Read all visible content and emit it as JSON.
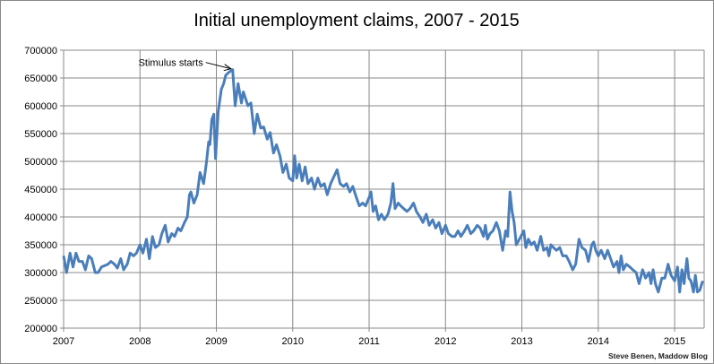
{
  "chart_data": {
    "type": "line",
    "title": "Initial unemployment claims, 2007 - 2015",
    "xlabel": "",
    "ylabel": "",
    "ylim": [
      200000,
      700000
    ],
    "xlim": [
      "2007-01-01",
      "2015-05-22"
    ],
    "grid": true,
    "legend": "none",
    "line_color": "#4A7EBB",
    "y_ticks": [
      "200000",
      "250000",
      "300000",
      "350000",
      "400000",
      "450000",
      "500000",
      "550000",
      "600000",
      "650000",
      "700000"
    ],
    "x_ticks": [
      "2007",
      "2008",
      "2009",
      "2010",
      "2011",
      "2012",
      "2013",
      "2014",
      "2015"
    ],
    "annotation": {
      "text": "Stimulus starts",
      "x": "2009-03-20",
      "y": 665000
    },
    "credit": "Steve Benen, Maddow Blog",
    "series": [
      {
        "x": [
          "2007-01-01",
          "2007-01-15",
          "2007-02-01",
          "2007-02-15",
          "2007-03-01",
          "2007-03-15",
          "2007-04-01",
          "2007-04-15",
          "2007-05-01",
          "2007-05-15",
          "2007-06-01",
          "2007-06-15",
          "2007-07-01",
          "2007-08-01",
          "2007-08-15",
          "2007-09-01",
          "2007-09-15",
          "2007-10-01",
          "2007-10-15",
          "2007-11-01",
          "2007-11-15",
          "2007-12-01",
          "2007-12-15",
          "2008-01-01",
          "2008-01-15",
          "2008-02-01",
          "2008-02-15",
          "2008-03-01",
          "2008-03-15",
          "2008-04-01",
          "2008-04-15",
          "2008-05-01",
          "2008-05-15",
          "2008-06-01",
          "2008-06-15",
          "2008-07-01",
          "2008-07-15",
          "2008-08-01",
          "2008-08-15",
          "2008-08-25",
          "2008-09-01",
          "2008-09-15",
          "2008-10-01",
          "2008-10-15",
          "2008-11-01",
          "2008-11-15",
          "2008-11-25",
          "2008-12-01",
          "2008-12-10",
          "2008-12-20",
          "2008-12-28",
          "2009-01-10",
          "2009-01-25",
          "2009-02-05",
          "2009-02-15",
          "2009-03-01",
          "2009-03-20",
          "2009-04-01",
          "2009-04-15",
          "2009-05-01",
          "2009-05-10",
          "2009-06-01",
          "2009-06-15",
          "2009-07-01",
          "2009-07-15",
          "2009-08-01",
          "2009-08-15",
          "2009-09-01",
          "2009-09-15",
          "2009-10-01",
          "2009-10-15",
          "2009-11-01",
          "2009-11-15",
          "2009-12-01",
          "2009-12-15",
          "2010-01-01",
          "2010-01-10",
          "2010-01-20",
          "2010-02-01",
          "2010-02-15",
          "2010-03-01",
          "2010-03-15",
          "2010-04-01",
          "2010-04-15",
          "2010-05-01",
          "2010-05-15",
          "2010-06-01",
          "2010-06-15",
          "2010-07-01",
          "2010-08-01",
          "2010-08-15",
          "2010-09-01",
          "2010-09-15",
          "2010-10-01",
          "2010-10-15",
          "2010-11-01",
          "2010-11-15",
          "2010-12-01",
          "2010-12-15",
          "2011-01-01",
          "2011-01-10",
          "2011-01-20",
          "2011-02-01",
          "2011-02-15",
          "2011-03-01",
          "2011-03-15",
          "2011-04-01",
          "2011-04-15",
          "2011-04-25",
          "2011-05-05",
          "2011-05-20",
          "2011-06-01",
          "2011-06-15",
          "2011-07-01",
          "2011-07-15",
          "2011-08-01",
          "2011-08-15",
          "2011-09-01",
          "2011-09-15",
          "2011-10-01",
          "2011-10-15",
          "2011-11-01",
          "2011-11-15",
          "2011-12-01",
          "2011-12-15",
          "2012-01-01",
          "2012-01-15",
          "2012-02-01",
          "2012-02-15",
          "2012-03-01",
          "2012-03-15",
          "2012-04-01",
          "2012-04-15",
          "2012-05-01",
          "2012-05-15",
          "2012-06-01",
          "2012-06-15",
          "2012-07-01",
          "2012-07-10",
          "2012-07-20",
          "2012-08-01",
          "2012-08-15",
          "2012-09-01",
          "2012-09-15",
          "2012-10-01",
          "2012-10-15",
          "2012-10-25",
          "2012-11-05",
          "2012-11-15",
          "2012-11-25",
          "2012-12-05",
          "2012-12-20",
          "2013-01-10",
          "2013-01-20",
          "2013-02-01",
          "2013-02-15",
          "2013-03-01",
          "2013-03-15",
          "2013-04-01",
          "2013-04-15",
          "2013-05-01",
          "2013-05-10",
          "2013-05-20",
          "2013-06-01",
          "2013-06-15",
          "2013-07-01",
          "2013-07-15",
          "2013-08-01",
          "2013-08-15",
          "2013-09-01",
          "2013-09-15",
          "2013-10-01",
          "2013-10-15",
          "2013-11-01",
          "2013-11-15",
          "2013-12-01",
          "2013-12-10",
          "2013-12-20",
          "2014-01-01",
          "2014-01-15",
          "2014-02-01",
          "2014-02-15",
          "2014-03-01",
          "2014-03-15",
          "2014-04-01",
          "2014-04-10",
          "2014-04-20",
          "2014-05-01",
          "2014-05-15",
          "2014-06-01",
          "2014-06-15",
          "2014-07-01",
          "2014-07-15",
          "2014-08-01",
          "2014-08-15",
          "2014-09-01",
          "2014-09-10",
          "2014-09-20",
          "2014-10-01",
          "2014-10-15",
          "2014-11-01",
          "2014-11-15",
          "2014-12-01",
          "2014-12-15",
          "2015-01-01",
          "2015-01-15",
          "2015-01-25",
          "2015-02-05",
          "2015-02-15",
          "2015-03-01",
          "2015-03-10",
          "2015-03-20",
          "2015-04-01",
          "2015-04-10",
          "2015-04-20",
          "2015-05-01",
          "2015-05-15"
        ],
        "values": [
          330000,
          300000,
          335000,
          310000,
          335000,
          320000,
          320000,
          305000,
          330000,
          325000,
          300000,
          300000,
          310000,
          315000,
          320000,
          315000,
          308000,
          325000,
          305000,
          315000,
          335000,
          330000,
          335000,
          350000,
          335000,
          360000,
          325000,
          365000,
          345000,
          350000,
          370000,
          385000,
          355000,
          370000,
          365000,
          380000,
          375000,
          390000,
          400000,
          440000,
          445000,
          425000,
          440000,
          480000,
          460000,
          500000,
          535000,
          530000,
          575000,
          585000,
          505000,
          590000,
          630000,
          640000,
          655000,
          660000,
          665000,
          600000,
          640000,
          605000,
          625000,
          600000,
          605000,
          550000,
          585000,
          560000,
          562000,
          540000,
          552000,
          515000,
          530000,
          510000,
          480000,
          495000,
          470000,
          465000,
          510000,
          470000,
          495000,
          465000,
          490000,
          460000,
          470000,
          450000,
          470000,
          455000,
          460000,
          440000,
          460000,
          485000,
          460000,
          455000,
          460000,
          445000,
          455000,
          435000,
          420000,
          425000,
          420000,
          435000,
          445000,
          410000,
          420000,
          395000,
          405000,
          395000,
          405000,
          425000,
          460000,
          415000,
          425000,
          420000,
          415000,
          410000,
          415000,
          425000,
          410000,
          400000,
          390000,
          405000,
          385000,
          395000,
          380000,
          390000,
          370000,
          385000,
          370000,
          365000,
          365000,
          375000,
          365000,
          375000,
          385000,
          370000,
          375000,
          385000,
          380000,
          365000,
          385000,
          360000,
          370000,
          375000,
          390000,
          375000,
          340000,
          375000,
          365000,
          445000,
          410000,
          390000,
          350000,
          360000,
          375000,
          345000,
          360000,
          350000,
          355000,
          340000,
          365000,
          340000,
          345000,
          330000,
          350000,
          345000,
          340000,
          345000,
          330000,
          330000,
          320000,
          305000,
          315000,
          360000,
          345000,
          340000,
          320000,
          350000,
          355000,
          340000,
          330000,
          340000,
          325000,
          340000,
          325000,
          310000,
          320000,
          300000,
          330000,
          305000,
          315000,
          310000,
          305000,
          300000,
          280000,
          305000,
          290000,
          300000,
          280000,
          305000,
          280000,
          265000,
          290000,
          290000,
          315000,
          295000,
          285000,
          310000,
          265000,
          305000,
          280000,
          325000,
          290000,
          285000,
          265000,
          295000,
          265000,
          268000,
          285000
        ]
      }
    ]
  }
}
